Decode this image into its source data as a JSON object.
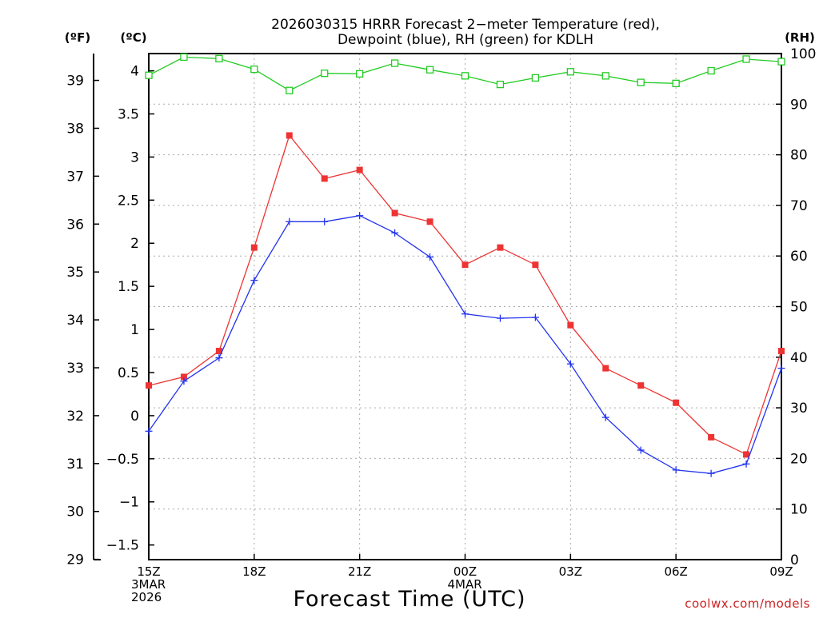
{
  "chart_data": {
    "type": "line",
    "title_line1": "2026030315 HRRR Forecast 2−meter Temperature (red),",
    "title_line2": "Dewpoint (blue), RH (green) for KDLH",
    "xlabel": "Forecast Time (UTC)",
    "credit": "coolwx.com/models",
    "units": {
      "fahrenheit": "(ºF)",
      "celsius": "(ºC)",
      "rh": "(RH)"
    },
    "x_ticks": [
      {
        "hour": 0,
        "lines": [
          "15Z",
          "3MAR",
          "2026"
        ]
      },
      {
        "hour": 3,
        "lines": [
          "18Z"
        ]
      },
      {
        "hour": 6,
        "lines": [
          "21Z"
        ]
      },
      {
        "hour": 9,
        "lines": [
          "00Z",
          "4MAR"
        ]
      },
      {
        "hour": 12,
        "lines": [
          "03Z"
        ]
      },
      {
        "hour": 15,
        "lines": [
          "06Z"
        ]
      },
      {
        "hour": 18,
        "lines": [
          "09Z"
        ]
      }
    ],
    "xlim": [
      0,
      18
    ],
    "celsius_ticks": [
      "4",
      "3.5",
      "3",
      "2.5",
      "2",
      "1.5",
      "1",
      "0.5",
      "0",
      "−0.5",
      "−1",
      "−1.5"
    ],
    "celsius_tick_values": [
      4,
      3.5,
      3,
      2.5,
      2,
      1.5,
      1,
      0.5,
      0,
      -0.5,
      -1,
      -1.5
    ],
    "ylim_celsius": [
      -1.67,
      4.2
    ],
    "fahrenheit_ticks": [
      "39",
      "38",
      "37",
      "36",
      "35",
      "34",
      "33",
      "32",
      "31",
      "30",
      "29"
    ],
    "fahrenheit_tick_values": [
      39,
      38,
      37,
      36,
      35,
      34,
      33,
      32,
      31,
      30,
      29
    ],
    "rh_ticks": [
      "100",
      "90",
      "80",
      "70",
      "60",
      "50",
      "40",
      "30",
      "20",
      "10",
      "0"
    ],
    "rh_tick_values": [
      100,
      90,
      80,
      70,
      60,
      50,
      40,
      30,
      20,
      10,
      0
    ],
    "ylim_rh": [
      0,
      100
    ],
    "grid": true,
    "series": [
      {
        "name": "Temperature",
        "color": "#ee3333",
        "marker": "filled-square",
        "axis": "celsius",
        "x": [
          0,
          1,
          2,
          3,
          4,
          5,
          6,
          7,
          8,
          9,
          10,
          11,
          12,
          13,
          14,
          15,
          16,
          17,
          18
        ],
        "values": [
          0.35,
          0.45,
          0.75,
          1.95,
          3.25,
          2.75,
          2.85,
          2.35,
          2.25,
          1.75,
          1.95,
          1.75,
          1.05,
          0.55,
          0.35,
          0.15,
          -0.25,
          -0.45,
          0.75
        ]
      },
      {
        "name": "Dewpoint",
        "color": "#2233ee",
        "marker": "plus",
        "axis": "celsius",
        "x": [
          0,
          1,
          2,
          3,
          4,
          5,
          6,
          7,
          8,
          9,
          10,
          11,
          12,
          13,
          14,
          15,
          16,
          17,
          18
        ],
        "values": [
          -0.18,
          0.4,
          0.67,
          1.57,
          2.25,
          2.25,
          2.32,
          2.12,
          1.84,
          1.18,
          1.13,
          1.14,
          0.6,
          -0.02,
          -0.4,
          -0.63,
          -0.67,
          -0.56,
          0.55
        ]
      },
      {
        "name": "RH",
        "color": "#22cc22",
        "marker": "open-square",
        "axis": "rh",
        "x": [
          0,
          1,
          2,
          3,
          4,
          5,
          6,
          7,
          8,
          9,
          10,
          11,
          12,
          13,
          14,
          15,
          16,
          17,
          18
        ],
        "values": [
          95.7,
          99.3,
          99.0,
          96.9,
          92.7,
          96.1,
          96.0,
          98.1,
          96.8,
          95.6,
          93.9,
          95.2,
          96.4,
          95.6,
          94.3,
          94.1,
          96.6,
          98.9,
          98.4
        ]
      }
    ]
  }
}
